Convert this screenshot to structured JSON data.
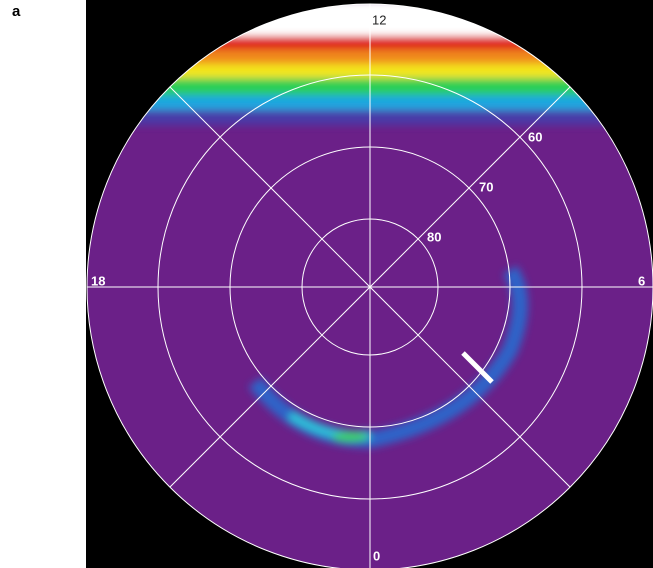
{
  "panel_label": "a",
  "hour_labels": {
    "top": "12",
    "right": "6",
    "bottom": "0",
    "left": "18"
  },
  "latitude_labels": [
    "60",
    "70",
    "80"
  ]
}
